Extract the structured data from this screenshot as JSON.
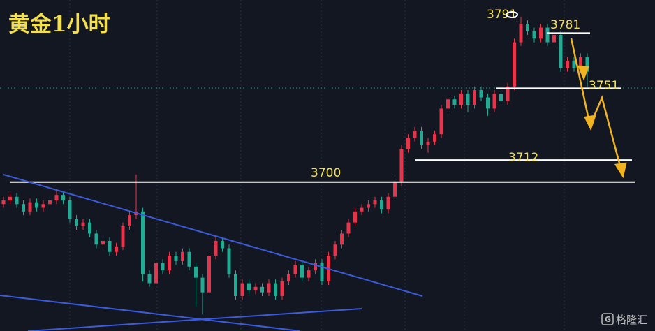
{
  "chart_data": {
    "type": "candlestick",
    "title": "黄金1小时",
    "watermark": "格隆汇",
    "ylim": [
      3619,
      3799
    ],
    "up_color": "#e8344a",
    "down_color": "#22ab94",
    "levels": [
      3791,
      3781,
      3751,
      3712,
      3700
    ],
    "ohlc": [
      [
        3688,
        3692,
        3686,
        3690
      ],
      [
        3690,
        3694,
        3688,
        3692
      ],
      [
        3692,
        3694,
        3686,
        3688
      ],
      [
        3688,
        3690,
        3682,
        3684
      ],
      [
        3684,
        3691,
        3682,
        3689
      ],
      [
        3689,
        3691,
        3684,
        3686
      ],
      [
        3686,
        3690,
        3684,
        3688
      ],
      [
        3688,
        3692,
        3686,
        3690
      ],
      [
        3690,
        3695,
        3688,
        3693
      ],
      [
        3693,
        3695,
        3688,
        3690
      ],
      [
        3690,
        3692,
        3678,
        3680
      ],
      [
        3680,
        3682,
        3674,
        3676
      ],
      [
        3676,
        3680,
        3674,
        3678
      ],
      [
        3678,
        3680,
        3670,
        3672
      ],
      [
        3672,
        3674,
        3664,
        3666
      ],
      [
        3666,
        3670,
        3664,
        3668
      ],
      [
        3668,
        3670,
        3660,
        3662
      ],
      [
        3662,
        3667,
        3660,
        3665
      ],
      [
        3665,
        3678,
        3663,
        3676
      ],
      [
        3676,
        3684,
        3674,
        3682
      ],
      [
        3682,
        3704,
        3680,
        3684
      ],
      [
        3684,
        3686,
        3646,
        3650
      ],
      [
        3650,
        3652,
        3643,
        3645
      ],
      [
        3645,
        3658,
        3643,
        3656
      ],
      [
        3656,
        3658,
        3650,
        3652
      ],
      [
        3652,
        3662,
        3650,
        3660
      ],
      [
        3660,
        3662,
        3655,
        3657
      ],
      [
        3657,
        3664,
        3655,
        3662
      ],
      [
        3662,
        3664,
        3652,
        3654
      ],
      [
        3654,
        3656,
        3632,
        3648
      ],
      [
        3648,
        3650,
        3628,
        3640
      ],
      [
        3640,
        3662,
        3638,
        3660
      ],
      [
        3660,
        3670,
        3658,
        3668
      ],
      [
        3668,
        3670,
        3662,
        3664
      ],
      [
        3664,
        3666,
        3648,
        3650
      ],
      [
        3650,
        3652,
        3636,
        3638
      ],
      [
        3638,
        3647,
        3636,
        3645
      ],
      [
        3645,
        3647,
        3639,
        3641
      ],
      [
        3641,
        3645,
        3639,
        3643
      ],
      [
        3643,
        3645,
        3638,
        3640
      ],
      [
        3640,
        3647,
        3638,
        3645
      ],
      [
        3645,
        3647,
        3636,
        3638
      ],
      [
        3638,
        3648,
        3636,
        3646
      ],
      [
        3646,
        3652,
        3644,
        3650
      ],
      [
        3650,
        3657,
        3648,
        3655
      ],
      [
        3655,
        3657,
        3646,
        3648
      ],
      [
        3648,
        3654,
        3646,
        3652
      ],
      [
        3652,
        3658,
        3650,
        3656
      ],
      [
        3656,
        3658,
        3644,
        3646
      ],
      [
        3646,
        3662,
        3644,
        3660
      ],
      [
        3660,
        3668,
        3658,
        3666
      ],
      [
        3666,
        3674,
        3664,
        3672
      ],
      [
        3672,
        3680,
        3670,
        3678
      ],
      [
        3678,
        3686,
        3676,
        3684
      ],
      [
        3684,
        3688,
        3682,
        3686
      ],
      [
        3686,
        3690,
        3684,
        3688
      ],
      [
        3688,
        3692,
        3686,
        3690
      ],
      [
        3690,
        3692,
        3683,
        3685
      ],
      [
        3685,
        3694,
        3683,
        3692
      ],
      [
        3692,
        3702,
        3690,
        3700
      ],
      [
        3700,
        3720,
        3698,
        3718
      ],
      [
        3718,
        3726,
        3716,
        3724
      ],
      [
        3724,
        3730,
        3722,
        3728
      ],
      [
        3728,
        3730,
        3718,
        3720
      ],
      [
        3720,
        3724,
        3716,
        3722
      ],
      [
        3722,
        3728,
        3720,
        3726
      ],
      [
        3726,
        3742,
        3724,
        3740
      ],
      [
        3740,
        3747,
        3738,
        3745
      ],
      [
        3745,
        3747,
        3740,
        3742
      ],
      [
        3742,
        3750,
        3740,
        3748
      ],
      [
        3748,
        3750,
        3738,
        3742
      ],
      [
        3742,
        3752,
        3740,
        3750
      ],
      [
        3750,
        3752,
        3744,
        3746
      ],
      [
        3746,
        3748,
        3736,
        3740
      ],
      [
        3740,
        3750,
        3738,
        3748
      ],
      [
        3748,
        3750,
        3742,
        3744
      ],
      [
        3744,
        3754,
        3742,
        3752
      ],
      [
        3752,
        3778,
        3750,
        3776
      ],
      [
        3776,
        3790,
        3774,
        3786
      ],
      [
        3786,
        3788,
        3780,
        3782
      ],
      [
        3782,
        3784,
        3776,
        3778
      ],
      [
        3778,
        3786,
        3776,
        3784
      ],
      [
        3784,
        3786,
        3774,
        3776
      ],
      [
        3776,
        3782,
        3774,
        3780
      ],
      [
        3780,
        3782,
        3760,
        3762
      ],
      [
        3762,
        3768,
        3760,
        3766
      ],
      [
        3766,
        3768,
        3760,
        3762
      ],
      [
        3762,
        3770,
        3760,
        3768
      ],
      [
        3768,
        3770,
        3752,
        3760
      ]
    ]
  }
}
